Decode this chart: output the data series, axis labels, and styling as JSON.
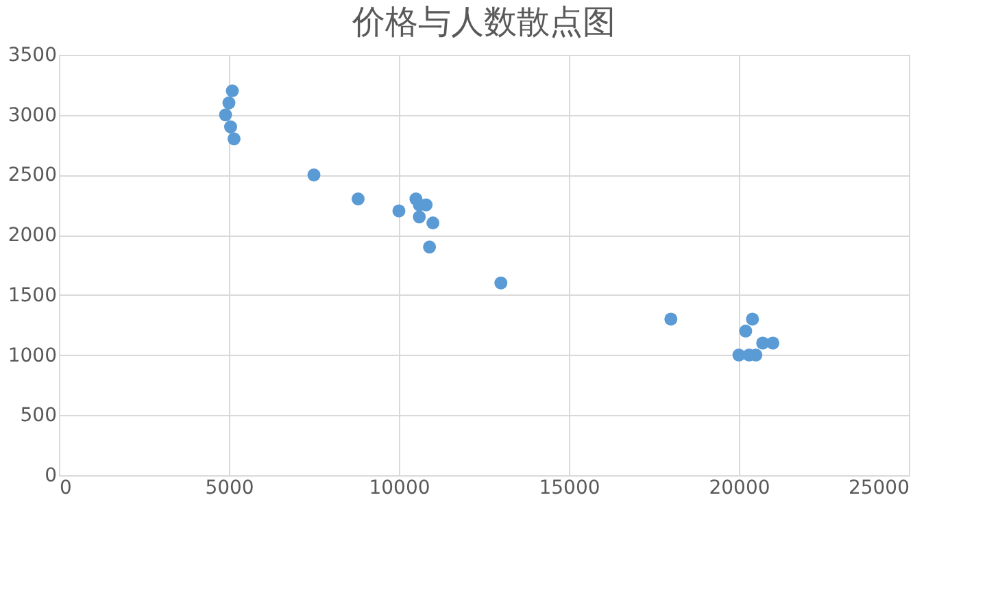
{
  "chart_data": {
    "type": "scatter",
    "title": "价格与人数散点图",
    "x": [
      4900,
      5000,
      5100,
      5050,
      5150,
      7500,
      8800,
      10000,
      10500,
      10600,
      10800,
      10600,
      11000,
      10900,
      13000,
      18000,
      20000,
      20200,
      20400,
      20300,
      20500,
      20700,
      21000
    ],
    "series": [
      {
        "color": "#5b9bd5",
        "values": [
          3000,
          3100,
          3200,
          2900,
          2800,
          2500,
          2300,
          2200,
          2300,
          2250,
          2250,
          2150,
          2100,
          1900,
          1600,
          1300,
          1000,
          1200,
          1300,
          1000,
          1000,
          1100,
          1100
        ]
      }
    ],
    "xlim": [
      0,
      25000
    ],
    "xticks": [
      0,
      5000,
      10000,
      15000,
      20000,
      25000
    ],
    "ylim": [
      0,
      3500
    ],
    "yticks": [
      0,
      500,
      1000,
      1500,
      2000,
      2500,
      3000,
      3500
    ],
    "grid": true,
    "marker": "circle",
    "legend": false
  }
}
